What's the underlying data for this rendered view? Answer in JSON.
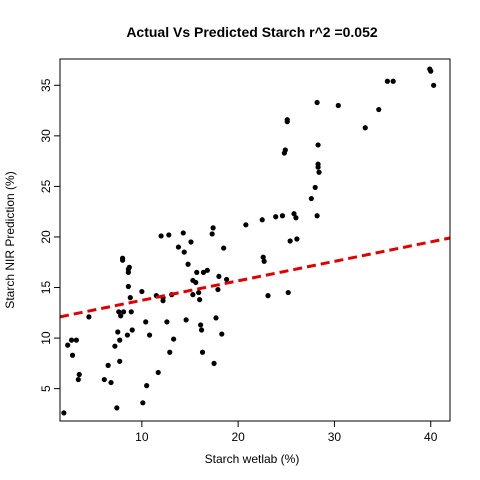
{
  "chart_data": {
    "type": "scatter",
    "title": "Actual Vs Predicted Starch r^2 =0.052",
    "xlabel": "Starch wetlab (%)",
    "ylabel": "Starch NIR Prediction (%)",
    "xlim": [
      1.5,
      42
    ],
    "ylim": [
      1.8,
      37.6
    ],
    "xticks": [
      10,
      20,
      30,
      40
    ],
    "yticks": [
      5,
      10,
      15,
      20,
      25,
      30,
      35
    ],
    "grid": false,
    "colors": {
      "points": "#000000",
      "fit_line": "#dd0000"
    },
    "points": [
      [
        1.9,
        2.6
      ],
      [
        2.3,
        9.3
      ],
      [
        2.7,
        9.8
      ],
      [
        2.8,
        8.3
      ],
      [
        3.2,
        9.8
      ],
      [
        3.4,
        5.9
      ],
      [
        3.5,
        6.4
      ],
      [
        4.5,
        12.1
      ],
      [
        6.1,
        5.9
      ],
      [
        6.5,
        7.3
      ],
      [
        6.8,
        5.6
      ],
      [
        7.2,
        9.2
      ],
      [
        7.4,
        3.1
      ],
      [
        7.5,
        10.6
      ],
      [
        7.6,
        12.6
      ],
      [
        7.7,
        9.8
      ],
      [
        7.7,
        7.7
      ],
      [
        7.8,
        12.2
      ],
      [
        8.0,
        17.9
      ],
      [
        8.0,
        17.7
      ],
      [
        8.1,
        12.6
      ],
      [
        8.5,
        10.3
      ],
      [
        8.6,
        16.8
      ],
      [
        8.6,
        16.5
      ],
      [
        8.6,
        15.1
      ],
      [
        8.7,
        17.0
      ],
      [
        8.8,
        14.0
      ],
      [
        8.9,
        12.6
      ],
      [
        9.0,
        10.8
      ],
      [
        10.0,
        14.6
      ],
      [
        10.1,
        3.6
      ],
      [
        10.4,
        11.6
      ],
      [
        10.5,
        5.3
      ],
      [
        10.8,
        10.3
      ],
      [
        11.5,
        14.2
      ],
      [
        11.7,
        6.6
      ],
      [
        12.0,
        20.1
      ],
      [
        12.2,
        14.0
      ],
      [
        12.2,
        13.7
      ],
      [
        12.6,
        11.6
      ],
      [
        12.8,
        20.2
      ],
      [
        12.9,
        8.6
      ],
      [
        13.1,
        14.3
      ],
      [
        13.3,
        9.9
      ],
      [
        13.8,
        19.0
      ],
      [
        14.3,
        20.4
      ],
      [
        14.4,
        18.5
      ],
      [
        14.6,
        11.8
      ],
      [
        14.8,
        17.3
      ],
      [
        15.1,
        19.5
      ],
      [
        15.3,
        15.7
      ],
      [
        15.3,
        14.3
      ],
      [
        15.6,
        15.5
      ],
      [
        15.7,
        16.5
      ],
      [
        15.9,
        14.5
      ],
      [
        16.0,
        13.8
      ],
      [
        16.1,
        11.3
      ],
      [
        16.2,
        10.8
      ],
      [
        16.3,
        8.6
      ],
      [
        16.4,
        16.5
      ],
      [
        16.8,
        16.7
      ],
      [
        17.3,
        20.3
      ],
      [
        17.4,
        20.9
      ],
      [
        17.5,
        7.5
      ],
      [
        17.7,
        12.0
      ],
      [
        17.9,
        14.8
      ],
      [
        18.0,
        16.1
      ],
      [
        18.3,
        10.4
      ],
      [
        18.5,
        18.9
      ],
      [
        18.8,
        15.8
      ],
      [
        20.8,
        21.2
      ],
      [
        22.5,
        21.7
      ],
      [
        22.6,
        18.0
      ],
      [
        22.7,
        17.6
      ],
      [
        23.1,
        14.2
      ],
      [
        23.9,
        22.0
      ],
      [
        24.6,
        22.1
      ],
      [
        24.8,
        28.3
      ],
      [
        24.9,
        28.6
      ],
      [
        25.1,
        31.4
      ],
      [
        25.1,
        31.6
      ],
      [
        25.2,
        14.5
      ],
      [
        25.4,
        19.6
      ],
      [
        25.8,
        22.3
      ],
      [
        26.0,
        21.9
      ],
      [
        26.1,
        19.8
      ],
      [
        27.6,
        23.8
      ],
      [
        28.0,
        24.9
      ],
      [
        28.2,
        22.1
      ],
      [
        28.2,
        33.3
      ],
      [
        28.3,
        29.1
      ],
      [
        28.3,
        27.2
      ],
      [
        28.3,
        26.9
      ],
      [
        28.4,
        26.4
      ],
      [
        30.4,
        33.0
      ],
      [
        33.2,
        30.8
      ],
      [
        34.6,
        32.6
      ],
      [
        35.5,
        35.4
      ],
      [
        36.1,
        35.4
      ],
      [
        39.9,
        36.6
      ],
      [
        40.0,
        36.4
      ],
      [
        40.3,
        35.0
      ]
    ],
    "fit_line": {
      "style": "dashed",
      "x": [
        1.5,
        42
      ],
      "y": [
        12.1,
        19.9
      ]
    }
  }
}
